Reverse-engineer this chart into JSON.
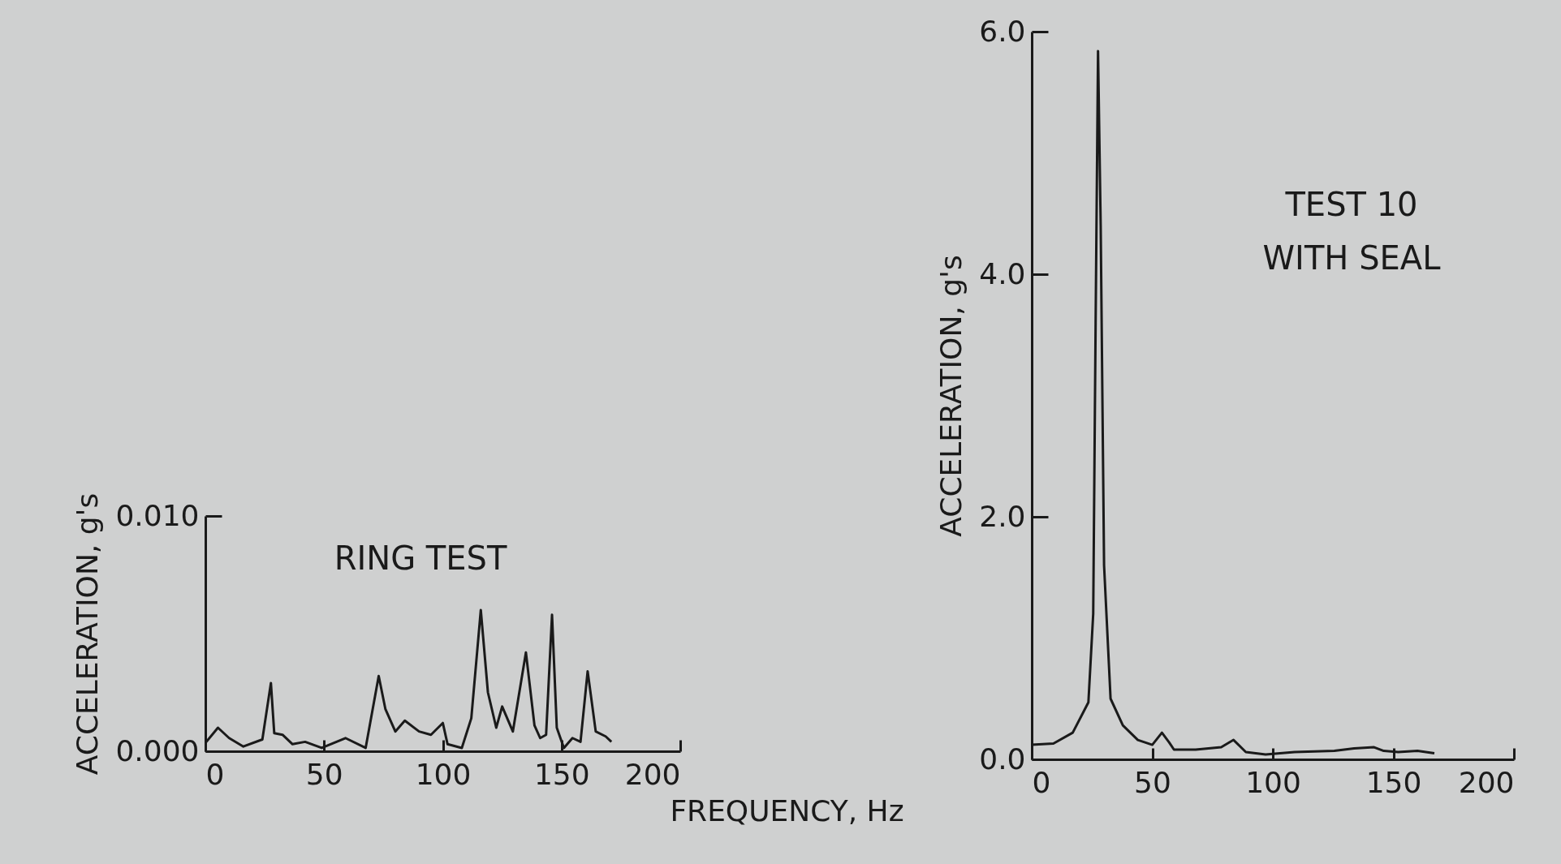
{
  "chart_data": [
    {
      "type": "line",
      "ylabel": "ACCELERATION, g's",
      "xlabel": "FREQUENCY, Hz",
      "annotations": [
        "RING TEST"
      ],
      "xlim": [
        0,
        200
      ],
      "ylim": [
        0,
        0.01
      ],
      "xticks": [
        0,
        50,
        100,
        150,
        200
      ],
      "yticks": [
        {
          "value": 0,
          "label": "0.000"
        },
        {
          "value": 0.01,
          "label": "0.010"
        }
      ],
      "series": [
        {
          "color": "#1a1a1a",
          "x": [
            0,
            5.3,
            10,
            16,
            24,
            27.6,
            29,
            32.5,
            36.7,
            42,
            49,
            59,
            67.5,
            73,
            75.8,
            80,
            84,
            90,
            95,
            100,
            102,
            108,
            112,
            116,
            119,
            122.5,
            125,
            129.5,
            135,
            138.6,
            141,
            143.5,
            146,
            148,
            151,
            154.6,
            158,
            161,
            164.4,
            168.6,
            171
          ],
          "values": [
            0.00035,
            0.001,
            0.00056,
            0.0002,
            0.0005,
            0.0029,
            0.00077,
            0.0007,
            0.0003,
            0.0004,
            0.00014,
            0.00056,
            0.00014,
            0.0032,
            0.0018,
            0.00084,
            0.0013,
            0.00084,
            0.0007,
            0.0012,
            0.0003,
            0.00014,
            0.0014,
            0.006,
            0.0025,
            0.001,
            0.0019,
            0.00084,
            0.0042,
            0.0011,
            0.00056,
            0.0007,
            0.0058,
            0.001,
            0.00014,
            0.00056,
            0.0004,
            0.0034,
            0.00084,
            0.00063,
            0.0004
          ]
        }
      ]
    },
    {
      "type": "line",
      "ylabel": "ACCELERATION, g's",
      "annotations": [
        "TEST 10\nWITH SEAL"
      ],
      "xlim": [
        0,
        200
      ],
      "ylim": [
        0,
        6
      ],
      "xticks": [
        0,
        50,
        100,
        150,
        200
      ],
      "yticks": [
        {
          "value": 0,
          "label": "0.0"
        },
        {
          "value": 2,
          "label": "2.0"
        },
        {
          "value": 4,
          "label": "4.0"
        },
        {
          "value": 6,
          "label": "6.0"
        }
      ],
      "series": [
        {
          "color": "#1a1a1a",
          "x": [
            0,
            9,
            17,
            23.5,
            25.5,
            26.5,
            27.5,
            28.6,
            30,
            32.7,
            37.8,
            44,
            50,
            54,
            57,
            59,
            68,
            78.6,
            83.7,
            88.8,
            97,
            109,
            125.5,
            133.7,
            142,
            146,
            152,
            160,
            167
          ],
          "values": [
            0.12,
            0.13,
            0.22,
            0.47,
            1.2,
            3.6,
            5.84,
            4.4,
            1.6,
            0.5,
            0.28,
            0.16,
            0.12,
            0.22,
            0.14,
            0.08,
            0.08,
            0.1,
            0.16,
            0.06,
            0.04,
            0.06,
            0.07,
            0.09,
            0.1,
            0.07,
            0.06,
            0.07,
            0.05
          ]
        }
      ]
    }
  ]
}
